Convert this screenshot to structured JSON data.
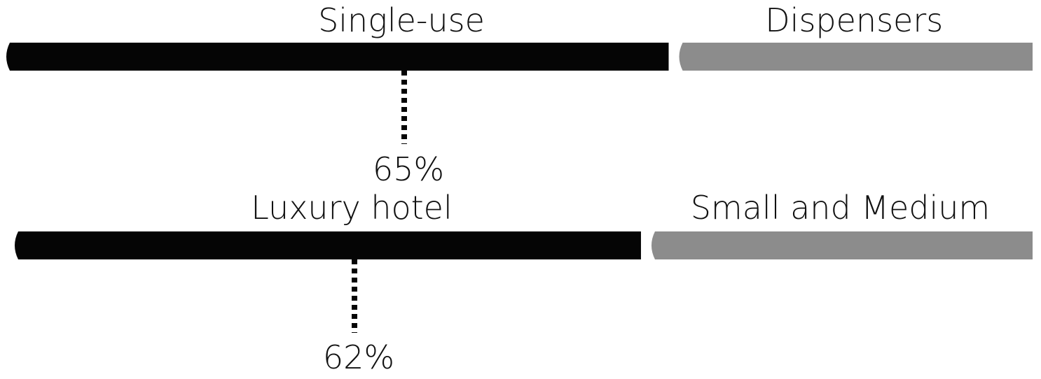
{
  "chart_data": {
    "type": "bar",
    "orientation": "horizontal",
    "stacked": true,
    "value_unit": "%",
    "grid": false,
    "legend": "none",
    "colors": {
      "primary": "#050505",
      "secondary": "#8c8c8c"
    },
    "bars": [
      {
        "primary_label": "Single-use",
        "secondary_label": "Dispensers",
        "primary_value": 65,
        "secondary_value": 35,
        "value_label": "65%"
      },
      {
        "primary_label": "Luxury hotel",
        "secondary_label": "Small and Medium",
        "primary_value": 62,
        "secondary_value": 38,
        "value_label": "62%"
      }
    ]
  }
}
